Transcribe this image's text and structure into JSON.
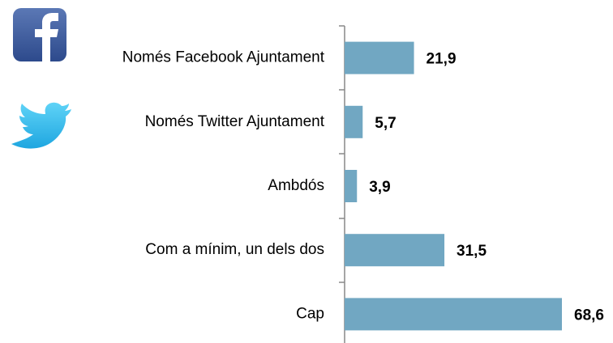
{
  "chart_data": {
    "type": "barh",
    "categories": [
      "Només Facebook Ajuntament",
      "Només Twitter Ajuntament",
      "Ambdós",
      "Com a mínim, un dels dos",
      "Cap"
    ],
    "values": [
      21.9,
      5.7,
      3.9,
      31.5,
      68.6
    ],
    "value_labels": [
      "21,9",
      "5,7",
      "3,9",
      "31,5",
      "68,6"
    ],
    "color": "#71a7c2"
  }
}
